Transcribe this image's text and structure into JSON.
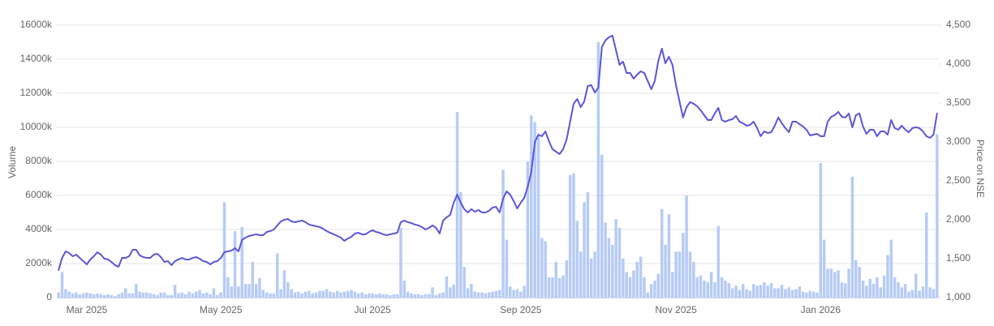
{
  "chart_data": {
    "type": "bar-line",
    "y_label": "Volume",
    "y2_label": "Price on NSE",
    "grid": true,
    "ylim": [
      0,
      16000
    ],
    "yticks": [
      0,
      {
        "value": 2000,
        "label": "2000k"
      },
      {
        "value": 4000,
        "label": "4000k"
      },
      {
        "value": 6000,
        "label": "6000k"
      },
      {
        "value": 8000,
        "label": "8000k"
      },
      {
        "value": 10000,
        "label": "10000k"
      },
      {
        "value": 12000,
        "label": "12000k"
      },
      {
        "value": 14000,
        "label": "14000k"
      },
      {
        "value": 16000,
        "label": "16000k"
      }
    ],
    "y2lim": [
      1000,
      4500
    ],
    "y2ticks": [
      {
        "value": 1000,
        "label": "1,000"
      },
      {
        "value": 1500,
        "label": "1,500"
      },
      {
        "value": 2000,
        "label": "2,000"
      },
      {
        "value": 2500,
        "label": "2,500"
      },
      {
        "value": 3000,
        "label": "3,000"
      },
      {
        "value": 3500,
        "label": "3,500"
      },
      {
        "value": 4000,
        "label": "4,000"
      },
      {
        "value": 4500,
        "label": "4,500"
      }
    ],
    "categories": [
      null,
      null,
      null,
      null,
      null,
      null,
      null,
      null,
      "Mar 2025",
      null,
      null,
      null,
      null,
      null,
      null,
      null,
      null,
      null,
      null,
      null,
      null,
      null,
      null,
      null,
      null,
      null,
      null,
      null,
      null,
      null,
      null,
      null,
      null,
      null,
      null,
      null,
      null,
      null,
      null,
      null,
      null,
      null,
      null,
      null,
      null,
      null,
      "May 2025",
      null,
      null,
      null,
      null,
      null,
      null,
      null,
      null,
      null,
      null,
      null,
      null,
      null,
      null,
      null,
      null,
      null,
      null,
      null,
      null,
      null,
      null,
      null,
      null,
      null,
      null,
      null,
      null,
      null,
      null,
      null,
      null,
      null,
      null,
      null,
      null,
      null,
      null,
      null,
      null,
      null,
      null,
      "Jul 2025",
      null,
      null,
      null,
      null,
      null,
      null,
      null,
      null,
      null,
      null,
      null,
      null,
      null,
      null,
      null,
      null,
      null,
      null,
      null,
      null,
      null,
      null,
      null,
      null,
      null,
      null,
      null,
      null,
      null,
      null,
      null,
      null,
      null,
      null,
      null,
      null,
      null,
      null,
      null,
      null,
      null,
      "Sep 2025",
      null,
      null,
      null,
      null,
      null,
      null,
      null,
      null,
      null,
      null,
      null,
      null,
      null,
      null,
      null,
      null,
      null,
      null,
      null,
      null,
      null,
      null,
      null,
      null,
      null,
      null,
      null,
      null,
      null,
      null,
      null,
      null,
      null,
      null,
      null,
      null,
      null,
      null,
      null,
      null,
      null,
      null,
      null,
      "Nov 2025",
      null,
      null,
      null,
      null,
      null,
      null,
      null,
      null,
      null,
      null,
      null,
      null,
      null,
      null,
      null,
      null,
      null,
      null,
      null,
      null,
      null,
      null,
      null,
      null,
      null,
      null,
      null,
      null,
      null,
      null,
      null,
      null,
      null,
      null,
      null,
      null,
      null,
      null,
      null,
      null,
      "Jan 2026",
      null,
      null,
      null,
      null,
      null,
      null,
      null,
      null,
      null,
      null,
      null,
      null,
      null,
      null,
      null,
      null,
      null,
      null,
      null,
      null,
      null,
      null,
      null,
      null,
      null,
      null,
      null,
      null,
      null,
      null,
      null,
      null,
      null
    ],
    "series": [
      {
        "type": "bar",
        "color": "#b6cbf5",
        "values": [
          300,
          1500,
          500,
          350,
          250,
          300,
          200,
          250,
          300,
          250,
          200,
          250,
          200,
          150,
          200,
          150,
          100,
          200,
          300,
          550,
          250,
          250,
          800,
          350,
          300,
          300,
          250,
          200,
          150,
          300,
          300,
          150,
          150,
          750,
          250,
          300,
          200,
          350,
          250,
          350,
          450,
          250,
          300,
          200,
          550,
          150,
          300,
          5600,
          1200,
          650,
          3900,
          650,
          4150,
          800,
          800,
          2100,
          800,
          1150,
          450,
          300,
          250,
          250,
          2600,
          500,
          1600,
          900,
          500,
          300,
          350,
          250,
          350,
          400,
          250,
          300,
          400,
          400,
          500,
          350,
          300,
          400,
          300,
          350,
          400,
          450,
          350,
          250,
          300,
          200,
          250,
          250,
          200,
          250,
          200,
          200,
          150,
          200,
          200,
          4100,
          1000,
          350,
          250,
          200,
          200,
          150,
          200,
          200,
          600,
          150,
          250,
          300,
          1250,
          600,
          750,
          10900,
          6200,
          1800,
          550,
          800,
          350,
          300,
          300,
          250,
          300,
          350,
          400,
          450,
          7500,
          3400,
          650,
          450,
          500,
          350,
          700,
          8000,
          10700,
          10300,
          9500,
          3500,
          3300,
          1200,
          1200,
          2100,
          1150,
          1300,
          2200,
          7200,
          7300,
          4500,
          2700,
          5600,
          6200,
          2300,
          2700,
          15000,
          8400,
          4400,
          3500,
          3100,
          4600,
          4100,
          2300,
          1500,
          1200,
          1600,
          2100,
          2400,
          1200,
          300,
          800,
          1000,
          1400,
          5200,
          3100,
          4900,
          1500,
          2700,
          2700,
          3800,
          6000,
          2700,
          2100,
          1200,
          1300,
          1000,
          900,
          1500,
          900,
          4200,
          1200,
          1000,
          850,
          550,
          700,
          450,
          800,
          500,
          400,
          800,
          700,
          750,
          900,
          700,
          850,
          550,
          550,
          750,
          500,
          600,
          450,
          500,
          650,
          350,
          300,
          400,
          350,
          300,
          7900,
          3400,
          1700,
          1700,
          1500,
          1600,
          900,
          850,
          1700,
          7100,
          2200,
          1800,
          1000,
          700,
          1100,
          800,
          1200,
          600,
          1300,
          2500,
          3400,
          1200,
          900,
          600,
          800,
          350,
          450,
          1400,
          400,
          650,
          5000,
          600,
          500,
          9600
        ]
      },
      {
        "type": "line",
        "axis": "y2",
        "color": "#5b56d6",
        "values": [
          1354,
          1510,
          1594,
          1573,
          1531,
          1552,
          1510,
          1469,
          1427,
          1490,
          1531,
          1583,
          1552,
          1500,
          1490,
          1458,
          1417,
          1396,
          1510,
          1510,
          1531,
          1615,
          1615,
          1542,
          1521,
          1510,
          1510,
          1552,
          1563,
          1521,
          1458,
          1469,
          1417,
          1469,
          1490,
          1510,
          1490,
          1490,
          1510,
          1521,
          1500,
          1469,
          1458,
          1427,
          1458,
          1469,
          1510,
          1583,
          1594,
          1604,
          1635,
          1594,
          1740,
          1771,
          1792,
          1802,
          1813,
          1802,
          1802,
          1844,
          1854,
          1875,
          1927,
          1979,
          2000,
          2010,
          1979,
          1969,
          1979,
          1990,
          1969,
          1938,
          1927,
          1917,
          1906,
          1885,
          1854,
          1833,
          1813,
          1792,
          1771,
          1729,
          1760,
          1781,
          1823,
          1833,
          1813,
          1813,
          1844,
          1865,
          1844,
          1833,
          1813,
          1802,
          1813,
          1823,
          1833,
          1969,
          1990,
          1969,
          1958,
          1938,
          1927,
          1906,
          1875,
          1896,
          1927,
          1896,
          1823,
          1990,
          2031,
          2063,
          2219,
          2323,
          2219,
          2136,
          2094,
          2136,
          2104,
          2125,
          2094,
          2094,
          2115,
          2156,
          2167,
          2094,
          2271,
          2365,
          2323,
          2240,
          2146,
          2219,
          2282,
          2427,
          2615,
          3000,
          3094,
          3073,
          3135,
          3010,
          2906,
          2875,
          2844,
          2906,
          3031,
          3260,
          3490,
          3552,
          3448,
          3521,
          3719,
          3729,
          3635,
          3698,
          4219,
          4303,
          4345,
          4365,
          4178,
          3990,
          4031,
          3886,
          3886,
          3813,
          3865,
          3906,
          3886,
          3782,
          3677,
          3782,
          4042,
          4198,
          4010,
          4094,
          3990,
          3729,
          3521,
          3313,
          3448,
          3511,
          3490,
          3458,
          3406,
          3344,
          3281,
          3281,
          3365,
          3438,
          3281,
          3260,
          3281,
          3292,
          3333,
          3260,
          3240,
          3208,
          3219,
          3260,
          3177,
          3073,
          3135,
          3115,
          3125,
          3208,
          3313,
          3240,
          3177,
          3125,
          3260,
          3260,
          3229,
          3198,
          3156,
          3083,
          3094,
          3104,
          3073,
          3073,
          3260,
          3323,
          3344,
          3386,
          3323,
          3313,
          3365,
          3188,
          3344,
          3365,
          3198,
          3104,
          3156,
          3156,
          3073,
          3135,
          3135,
          3094,
          3281,
          3177,
          3156,
          3208,
          3156,
          3125,
          3177,
          3188,
          3177,
          3135,
          3073,
          3052,
          3094,
          3365
        ]
      }
    ]
  }
}
